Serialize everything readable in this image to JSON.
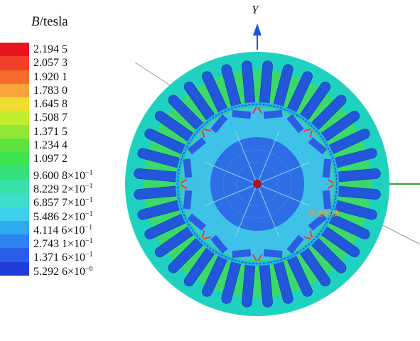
{
  "legend": {
    "title_var": "B",
    "title_unit": "/tesla",
    "entries": [
      {
        "mantissa": "2.194 5",
        "exp": "",
        "color": "#e8141c"
      },
      {
        "mantissa": "2.057 3",
        "exp": "",
        "color": "#f2402a"
      },
      {
        "mantissa": "1.920 1",
        "exp": "",
        "color": "#f76c2c"
      },
      {
        "mantissa": "1.783 0",
        "exp": "",
        "color": "#f8a43a"
      },
      {
        "mantissa": "1.645 8",
        "exp": "",
        "color": "#eedd2c"
      },
      {
        "mantissa": "1.508 7",
        "exp": "",
        "color": "#c2ec2e"
      },
      {
        "mantissa": "1.371 5",
        "exp": "",
        "color": "#92e636"
      },
      {
        "mantissa": "1.234 4",
        "exp": "",
        "color": "#5ee23e"
      },
      {
        "mantissa": "1.097 2",
        "exp": "",
        "color": "#3ee44e"
      },
      {
        "mantissa": "9.600 8×10",
        "exp": "−1",
        "color": "#34e178"
      },
      {
        "mantissa": "8.229 2×10",
        "exp": "−1",
        "color": "#37e2a8"
      },
      {
        "mantissa": "6.857 7×10",
        "exp": "−1",
        "color": "#3ee0cc"
      },
      {
        "mantissa": "5.486 2×10",
        "exp": "−1",
        "color": "#3cd0ea"
      },
      {
        "mantissa": "4.114 6×10",
        "exp": "−1",
        "color": "#2eaaf0"
      },
      {
        "mantissa": "2.743 1×10",
        "exp": "−1",
        "color": "#2d84ec"
      },
      {
        "mantissa": "1.371 6×10",
        "exp": "−1",
        "color": "#2a5ee8"
      },
      {
        "mantissa": "5.292 6×10",
        "exp": "−6",
        "color": "#1f3cd8"
      }
    ]
  },
  "figure": {
    "axis_label_y": "Y",
    "watermark": "乐图科技",
    "stator_slots": 36,
    "rotor_poles": 8,
    "colors": {
      "stator_yoke": "#1fd2c0",
      "stator_teeth": "#3bd96c",
      "slot_fill": "#2257dc",
      "airgap_band": "#22b4ea",
      "rotor_body": "#3fc2e8",
      "shaft_region": "#2d6ee6",
      "magnet": "#2a5fe4",
      "bridge": "#f0362a",
      "axis": "#1f55d6",
      "x_axis": "#2aa22a"
    }
  }
}
